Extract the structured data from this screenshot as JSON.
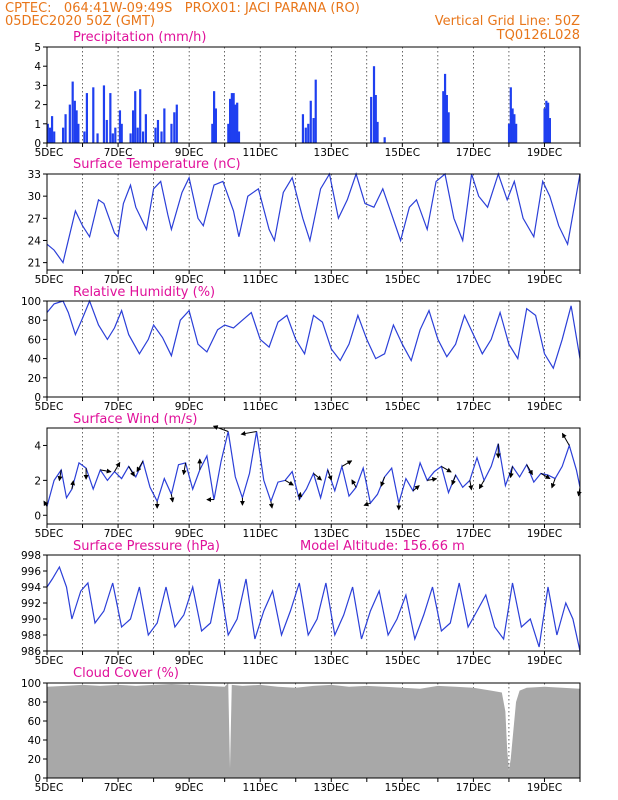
{
  "header": {
    "line1_left": "CPTEC:   064:41W-09:49S   PROX01: JACI PARANA (RO)",
    "line2_left": "05DEC2020 50Z (GMT)",
    "line2_right": "Vertical Grid Line: 50Z",
    "line3_right": "TQ0126L028"
  },
  "x_axis": {
    "start": "05DEC2020",
    "days": 15,
    "tick_labels": [
      "5DEC",
      "7DEC",
      "9DEC",
      "11DEC",
      "13DEC",
      "15DEC",
      "17DEC",
      "19DEC"
    ],
    "tick_days": [
      0,
      2,
      4,
      6,
      8,
      10,
      12,
      14
    ]
  },
  "colors": {
    "header": "#e8761a",
    "title": "#e0109a",
    "series": "#2b3fd8",
    "bars": "#1f3ff0",
    "cloud": "#a8a8a8"
  },
  "chart_data": [
    {
      "type": "bar",
      "title": "Precipitation (mm/h)",
      "ylim": [
        0,
        5
      ],
      "yticks": [
        0,
        1,
        2,
        3,
        4,
        5
      ],
      "x_days": [
        0.02,
        0.08,
        0.14,
        0.2,
        0.45,
        0.52,
        0.64,
        0.72,
        0.78,
        0.83,
        0.88,
        1.05,
        1.12,
        1.3,
        1.42,
        1.6,
        1.68,
        1.78,
        1.85,
        1.92,
        2.05,
        2.1,
        2.35,
        2.42,
        2.48,
        2.55,
        2.62,
        2.7,
        2.78,
        3.05,
        3.12,
        3.22,
        3.3,
        3.5,
        3.58,
        3.65,
        4.65,
        4.7,
        4.75,
        5.1,
        5.15,
        5.2,
        5.25,
        5.3,
        5.35,
        5.4,
        7.2,
        7.28,
        7.35,
        7.42,
        7.5,
        7.56,
        9.12,
        9.2,
        9.25,
        9.3,
        9.5,
        11.15,
        11.2,
        11.25,
        11.3,
        13.0,
        13.05,
        13.1,
        13.15,
        13.2,
        14.0,
        14.05,
        14.1,
        14.15
      ],
      "values": [
        1.0,
        0.8,
        1.4,
        0.6,
        0.8,
        1.5,
        2.0,
        3.2,
        2.2,
        1.7,
        1.0,
        0.6,
        2.6,
        2.9,
        0.5,
        3.0,
        1.2,
        2.6,
        0.5,
        0.8,
        1.7,
        1.0,
        0.5,
        1.7,
        2.7,
        0.8,
        2.8,
        0.6,
        1.5,
        0.8,
        1.2,
        0.6,
        1.8,
        1.0,
        1.6,
        2.0,
        1.0,
        2.7,
        1.8,
        1.0,
        2.3,
        2.6,
        2.6,
        2.0,
        2.1,
        0.6,
        1.5,
        0.8,
        1.0,
        2.2,
        1.3,
        3.3,
        2.4,
        4.0,
        2.5,
        1.1,
        0.3,
        2.7,
        3.6,
        2.5,
        1.6,
        1.0,
        2.9,
        1.8,
        1.5,
        1.0,
        1.8,
        2.2,
        2.1,
        1.3
      ]
    },
    {
      "type": "line",
      "title": "Surface Temperature (nC)",
      "ylim": [
        20,
        33
      ],
      "yticks": [
        21,
        24,
        27,
        30,
        33
      ],
      "x_days": [
        0,
        0.2,
        0.45,
        0.55,
        0.8,
        1.0,
        1.2,
        1.45,
        1.6,
        1.9,
        2.0,
        2.15,
        2.35,
        2.5,
        2.8,
        3.0,
        3.2,
        3.4,
        3.5,
        3.8,
        4.0,
        4.25,
        4.4,
        4.7,
        4.95,
        5.25,
        5.4,
        5.65,
        5.95,
        6.25,
        6.4,
        6.65,
        6.9,
        7.2,
        7.4,
        7.7,
        7.95,
        8.2,
        8.45,
        8.7,
        8.95,
        9.2,
        9.45,
        9.7,
        9.95,
        10.2,
        10.4,
        10.7,
        10.95,
        11.2,
        11.45,
        11.7,
        11.95,
        12.15,
        12.4,
        12.7,
        12.95,
        13.15,
        13.4,
        13.7,
        13.95,
        14.15,
        14.4,
        14.65,
        15.0
      ],
      "values": [
        23.5,
        22.7,
        21.0,
        23.0,
        28.0,
        26.0,
        24.5,
        29.5,
        29.0,
        25.0,
        24.5,
        29.0,
        31.5,
        28.5,
        25.5,
        31.0,
        32.0,
        27.5,
        25.5,
        30.5,
        32.5,
        27.0,
        26.0,
        31.5,
        32.0,
        28.0,
        24.5,
        30.0,
        31.0,
        25.5,
        24.0,
        30.5,
        32.5,
        27.0,
        24.0,
        31.0,
        33.0,
        27.0,
        29.5,
        33.0,
        29.0,
        28.5,
        31.0,
        27.5,
        24.0,
        28.5,
        29.5,
        25.5,
        32.0,
        33.0,
        27.0,
        24.0,
        33.0,
        30.0,
        28.5,
        33.0,
        29.5,
        32.0,
        27.0,
        24.5,
        32.0,
        30.0,
        26.0,
        23.5,
        33.0
      ]
    },
    {
      "type": "line",
      "title": "Relative Humidity (%)",
      "ylim": [
        0,
        100
      ],
      "yticks": [
        0,
        20,
        40,
        60,
        80,
        100
      ],
      "x_days": [
        0,
        0.2,
        0.45,
        0.6,
        0.8,
        1.0,
        1.2,
        1.45,
        1.7,
        1.9,
        2.1,
        2.3,
        2.6,
        2.85,
        3.0,
        3.25,
        3.5,
        3.75,
        4.0,
        4.25,
        4.5,
        4.8,
        5.0,
        5.25,
        5.5,
        5.75,
        6.0,
        6.25,
        6.5,
        6.75,
        7.0,
        7.25,
        7.5,
        7.75,
        8.0,
        8.25,
        8.5,
        8.75,
        9.0,
        9.25,
        9.5,
        9.75,
        10.0,
        10.25,
        10.5,
        10.75,
        11.0,
        11.25,
        11.5,
        11.75,
        12.0,
        12.25,
        12.5,
        12.75,
        13.0,
        13.25,
        13.5,
        13.75,
        14.0,
        14.25,
        14.5,
        14.75,
        15.0
      ],
      "values": [
        88,
        97,
        100,
        88,
        65,
        82,
        100,
        75,
        60,
        72,
        90,
        65,
        45,
        60,
        75,
        62,
        43,
        80,
        90,
        55,
        47,
        70,
        75,
        72,
        80,
        88,
        60,
        52,
        78,
        85,
        60,
        45,
        85,
        78,
        50,
        38,
        55,
        85,
        60,
        40,
        45,
        75,
        55,
        38,
        70,
        90,
        60,
        42,
        55,
        85,
        65,
        45,
        60,
        88,
        55,
        40,
        92,
        85,
        45,
        30,
        60,
        95,
        40
      ]
    },
    {
      "type": "line",
      "title": "Surface Wind (m/s)",
      "ylim": [
        -0.5,
        5
      ],
      "yticks": [
        0,
        2,
        4
      ],
      "x_days": [
        0,
        0.2,
        0.4,
        0.55,
        0.7,
        0.9,
        1.1,
        1.3,
        1.5,
        1.7,
        1.9,
        2.1,
        2.3,
        2.5,
        2.7,
        2.9,
        3.1,
        3.3,
        3.5,
        3.7,
        3.9,
        4.1,
        4.3,
        4.5,
        4.7,
        4.9,
        5.1,
        5.3,
        5.5,
        5.7,
        5.9,
        6.1,
        6.3,
        6.5,
        6.7,
        6.9,
        7.1,
        7.3,
        7.5,
        7.7,
        7.9,
        8.1,
        8.3,
        8.5,
        8.7,
        8.9,
        9.1,
        9.3,
        9.5,
        9.7,
        9.9,
        10.1,
        10.3,
        10.5,
        10.7,
        10.9,
        11.1,
        11.3,
        11.5,
        11.7,
        11.9,
        12.1,
        12.3,
        12.5,
        12.7,
        12.9,
        13.1,
        13.3,
        13.5,
        13.7,
        13.9,
        14.1,
        14.3,
        14.5,
        14.7,
        14.9,
        15.0
      ],
      "values": [
        0.5,
        2.0,
        2.6,
        1.0,
        1.5,
        3.0,
        2.7,
        1.5,
        2.6,
        2.0,
        2.5,
        2.1,
        2.8,
        2.2,
        3.1,
        1.6,
        0.8,
        2.1,
        1.2,
        2.9,
        3.0,
        1.5,
        2.6,
        3.4,
        0.9,
        3.1,
        4.8,
        2.2,
        1.0,
        2.4,
        4.8,
        2.0,
        0.8,
        1.9,
        2.0,
        2.5,
        0.9,
        1.5,
        2.4,
        1.0,
        2.6,
        1.4,
        2.8,
        1.1,
        1.6,
        2.7,
        0.7,
        1.2,
        2.2,
        2.7,
        0.7,
        2.1,
        1.4,
        3.0,
        2.0,
        2.5,
        2.8,
        1.3,
        2.3,
        1.6,
        2.0,
        3.3,
        2.0,
        2.8,
        4.1,
        1.7,
        2.8,
        2.2,
        2.9,
        1.9,
        2.4,
        2.3,
        2.1,
        2.8,
        4.0,
        2.6,
        1.6
      ]
    },
    {
      "type": "line",
      "title": "Surface Pressure (hPa)",
      "annotation": "Model Altitude: 156.66 m",
      "ylim": [
        986,
        998
      ],
      "yticks": [
        986,
        988,
        990,
        992,
        994,
        996,
        998
      ],
      "x_days": [
        0,
        0.15,
        0.35,
        0.55,
        0.7,
        0.95,
        1.15,
        1.35,
        1.6,
        1.85,
        2.1,
        2.35,
        2.6,
        2.85,
        3.1,
        3.35,
        3.6,
        3.85,
        4.1,
        4.35,
        4.6,
        4.85,
        5.1,
        5.35,
        5.6,
        5.85,
        6.1,
        6.35,
        6.6,
        6.85,
        7.1,
        7.35,
        7.6,
        7.85,
        8.1,
        8.35,
        8.6,
        8.85,
        9.1,
        9.35,
        9.6,
        9.85,
        10.1,
        10.35,
        10.6,
        10.85,
        11.1,
        11.35,
        11.6,
        11.85,
        12.1,
        12.35,
        12.6,
        12.85,
        13.1,
        13.35,
        13.6,
        13.85,
        14.1,
        14.35,
        14.6,
        14.8,
        15.0
      ],
      "values": [
        994,
        995,
        996.5,
        994,
        990,
        993.5,
        994.5,
        989.5,
        991,
        994.5,
        989,
        990,
        994,
        988,
        989.5,
        994,
        989,
        990.5,
        994,
        988.5,
        989.5,
        995,
        988,
        990,
        995,
        987.5,
        991,
        993.5,
        988,
        991,
        994.5,
        988,
        990,
        994.5,
        988,
        990.5,
        994,
        987.5,
        991,
        993.5,
        988,
        990,
        993,
        987.5,
        990.5,
        994,
        988.5,
        989.5,
        994.5,
        989,
        991,
        993,
        989,
        987.5,
        994.5,
        989,
        990,
        986.5,
        994,
        988,
        992,
        990,
        985.5
      ]
    },
    {
      "type": "area",
      "title": "Cloud Cover (%)",
      "ylim": [
        0,
        100
      ],
      "yticks": [
        0,
        20,
        40,
        60,
        80,
        100
      ],
      "x_days": [
        0,
        0.5,
        1.0,
        1.5,
        2.0,
        2.5,
        3.0,
        3.5,
        4.0,
        4.5,
        5.0,
        5.1,
        5.15,
        5.2,
        5.5,
        6.0,
        6.5,
        7.0,
        7.5,
        8.0,
        8.5,
        9.0,
        9.5,
        10.0,
        10.5,
        11.0,
        11.5,
        12.0,
        12.5,
        12.8,
        12.9,
        12.95,
        13.0,
        13.05,
        13.1,
        13.2,
        13.3,
        13.5,
        14.0,
        14.5,
        15.0
      ],
      "values": [
        96,
        97,
        98,
        97,
        98,
        97,
        98,
        99,
        98,
        97,
        96,
        100,
        10,
        98,
        97,
        98,
        96,
        95,
        97,
        98,
        96,
        97,
        96,
        95,
        94,
        97,
        96,
        95,
        92,
        90,
        70,
        30,
        8,
        20,
        40,
        80,
        92,
        95,
        96,
        95,
        94
      ]
    }
  ]
}
